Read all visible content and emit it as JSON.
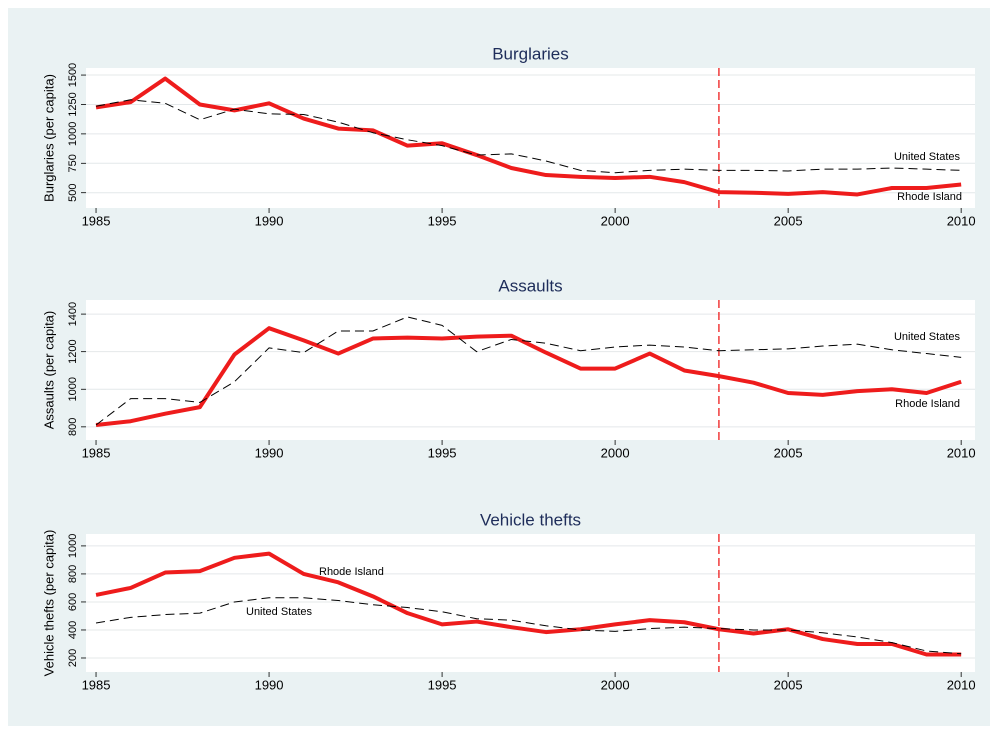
{
  "chart_data": [
    {
      "type": "line",
      "title": "Burglaries",
      "y_label": "Burglaries (per capita)",
      "x": [
        1985,
        1986,
        1987,
        1988,
        1989,
        1990,
        1991,
        1992,
        1993,
        1994,
        1995,
        1996,
        1997,
        1998,
        1999,
        2000,
        2001,
        2002,
        2003,
        2004,
        2005,
        2006,
        2007,
        2008,
        2009,
        2010
      ],
      "series": [
        {
          "name": "Rhode Island",
          "color": "#ee1c1c",
          "width": 4,
          "dashed": false,
          "values": [
            1225,
            1270,
            1470,
            1250,
            1200,
            1260,
            1130,
            1045,
            1030,
            900,
            920,
            820,
            710,
            650,
            635,
            625,
            635,
            590,
            505,
            500,
            490,
            505,
            485,
            540,
            540,
            570
          ]
        },
        {
          "name": "United States",
          "color": "#000000",
          "width": 1,
          "dashed": true,
          "values": [
            1235,
            1290,
            1260,
            1120,
            1210,
            1170,
            1165,
            1100,
            1010,
            950,
            900,
            820,
            830,
            770,
            690,
            670,
            690,
            700,
            690,
            690,
            685,
            700,
            700,
            710,
            700,
            690
          ]
        }
      ],
      "xlim": [
        1984.71,
        2010.4
      ],
      "ylim": [
        370,
        1560
      ],
      "xticks": [
        1985,
        1990,
        1995,
        2000,
        2005,
        2010
      ],
      "yticks": [
        500,
        750,
        1000,
        1250,
        1500
      ],
      "grid": true,
      "vline": {
        "value": 2003,
        "color": "#ee1c1c"
      }
    },
    {
      "type": "line",
      "title": "Assaults",
      "y_label": "Assaults (per capita)",
      "x": [
        1985,
        1986,
        1987,
        1988,
        1989,
        1990,
        1991,
        1992,
        1993,
        1994,
        1995,
        1996,
        1997,
        1998,
        1999,
        2000,
        2001,
        2002,
        2003,
        2004,
        2005,
        2006,
        2007,
        2008,
        2009,
        2010
      ],
      "series": [
        {
          "name": "Rhode Island",
          "color": "#ee1c1c",
          "width": 4,
          "dashed": false,
          "values": [
            810,
            830,
            870,
            905,
            1185,
            1325,
            1260,
            1190,
            1270,
            1275,
            1270,
            1280,
            1285,
            1195,
            1110,
            1110,
            1190,
            1100,
            1070,
            1035,
            980,
            970,
            990,
            1000,
            980,
            1040
          ]
        },
        {
          "name": "United States",
          "color": "#000000",
          "width": 1,
          "dashed": true,
          "values": [
            810,
            950,
            950,
            930,
            1040,
            1220,
            1195,
            1310,
            1310,
            1385,
            1340,
            1200,
            1265,
            1245,
            1205,
            1225,
            1235,
            1225,
            1205,
            1210,
            1215,
            1230,
            1240,
            1210,
            1190,
            1170
          ]
        }
      ],
      "xlim": [
        1984.71,
        2010.4
      ],
      "ylim": [
        730,
        1475
      ],
      "xticks": [
        1985,
        1990,
        1995,
        2000,
        2005,
        2010
      ],
      "yticks": [
        800,
        1000,
        1200,
        1400
      ],
      "grid": true,
      "vline": {
        "value": 2003,
        "color": "#ee1c1c"
      }
    },
    {
      "type": "line",
      "title": "Vehicle thefts",
      "y_label": "Vehicle thefts (per capita)",
      "x": [
        1985,
        1986,
        1987,
        1988,
        1989,
        1990,
        1991,
        1992,
        1993,
        1994,
        1995,
        1996,
        1997,
        1998,
        1999,
        2000,
        2001,
        2002,
        2003,
        2004,
        2005,
        2006,
        2007,
        2008,
        2009,
        2010
      ],
      "series": [
        {
          "name": "Rhode Island",
          "color": "#ee1c1c",
          "width": 4,
          "dashed": false,
          "values": [
            650,
            700,
            810,
            820,
            915,
            945,
            800,
            740,
            640,
            520,
            440,
            460,
            420,
            385,
            405,
            440,
            470,
            455,
            405,
            375,
            405,
            335,
            300,
            300,
            225,
            225
          ]
        },
        {
          "name": "United States",
          "color": "#000000",
          "width": 1,
          "dashed": true,
          "values": [
            450,
            490,
            510,
            520,
            600,
            630,
            630,
            610,
            580,
            560,
            530,
            480,
            470,
            430,
            400,
            390,
            410,
            420,
            410,
            400,
            400,
            380,
            350,
            310,
            250,
            230
          ]
        }
      ],
      "xlim": [
        1984.71,
        2010.4
      ],
      "ylim": [
        100,
        1085
      ],
      "xticks": [
        1985,
        1990,
        1995,
        2000,
        2005,
        2010
      ],
      "yticks": [
        200,
        400,
        600,
        800,
        1000
      ],
      "grid": true,
      "vline": {
        "value": 2003,
        "color": "#ee1c1c"
      }
    }
  ]
}
